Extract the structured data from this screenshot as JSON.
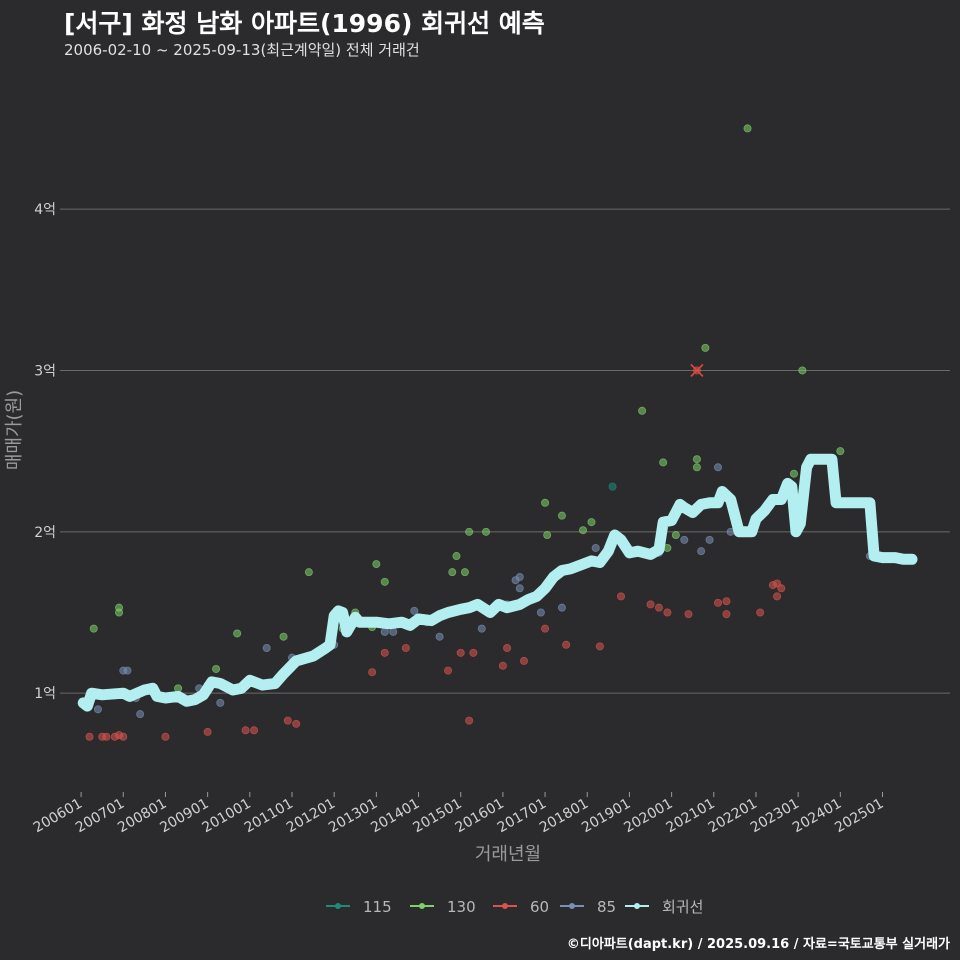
{
  "header": {
    "title": "[서구] 화정 남화 아파트(1996) 회귀선 예측",
    "subtitle": "2006-02-10 ~ 2025-09-13(최근계약일) 전체 거래건"
  },
  "footer": {
    "credit": "©디아파트(dapt.kr) / 2025.09.16 / 자료=국토교통부 실거래가"
  },
  "colors": {
    "background": "#2b2b2d",
    "grid": "#6a6a6a",
    "s115": "#1f8a7a",
    "s130": "#7fcf6a",
    "s60": "#d9534f",
    "s85": "#7a8fb5",
    "regression": "#b3eef0"
  },
  "chart_data": {
    "type": "scatter",
    "xlabel": "거래년월",
    "ylabel": "매매가(원)",
    "ylim": [
      0.4,
      4.8
    ],
    "y_unit": "억",
    "yticks": [
      {
        "value": 1,
        "label": "1억"
      },
      {
        "value": 2,
        "label": "2억"
      },
      {
        "value": 3,
        "label": "3억"
      },
      {
        "value": 4,
        "label": "4억"
      }
    ],
    "xlim": [
      2005.5,
      2026.6
    ],
    "xticks": [
      {
        "value": 2006.0,
        "label": "200601"
      },
      {
        "value": 2007.0,
        "label": "200701"
      },
      {
        "value": 2008.0,
        "label": "200801"
      },
      {
        "value": 2009.0,
        "label": "200901"
      },
      {
        "value": 2010.0,
        "label": "201001"
      },
      {
        "value": 2011.0,
        "label": "201101"
      },
      {
        "value": 2012.0,
        "label": "201201"
      },
      {
        "value": 2013.0,
        "label": "201301"
      },
      {
        "value": 2014.0,
        "label": "201401"
      },
      {
        "value": 2015.0,
        "label": "201501"
      },
      {
        "value": 2016.0,
        "label": "201601"
      },
      {
        "value": 2017.0,
        "label": "201701"
      },
      {
        "value": 2018.0,
        "label": "201801"
      },
      {
        "value": 2019.0,
        "label": "201901"
      },
      {
        "value": 2020.0,
        "label": "202001"
      },
      {
        "value": 2021.0,
        "label": "202101"
      },
      {
        "value": 2022.0,
        "label": "202201"
      },
      {
        "value": 2023.0,
        "label": "202301"
      },
      {
        "value": 2024.0,
        "label": "202401"
      },
      {
        "value": 2025.0,
        "label": "202501"
      }
    ],
    "legend": {
      "placement": "bottom",
      "entries": [
        "115",
        "130",
        "60",
        "85",
        "회귀선"
      ]
    },
    "series": [
      {
        "name": "115",
        "points": [
          [
            2018.6,
            2.28
          ]
        ]
      },
      {
        "name": "130",
        "points": [
          [
            2006.3,
            1.4
          ],
          [
            2006.9,
            1.5
          ],
          [
            2006.9,
            1.53
          ],
          [
            2008.3,
            1.03
          ],
          [
            2009.2,
            1.15
          ],
          [
            2009.7,
            1.37
          ],
          [
            2010.8,
            1.35
          ],
          [
            2011.4,
            1.75
          ],
          [
            2012.2,
            1.4
          ],
          [
            2012.5,
            1.5
          ],
          [
            2012.9,
            1.41
          ],
          [
            2013.0,
            1.8
          ],
          [
            2013.2,
            1.69
          ],
          [
            2014.8,
            1.75
          ],
          [
            2014.9,
            1.85
          ],
          [
            2015.1,
            1.75
          ],
          [
            2015.2,
            2.0
          ],
          [
            2015.6,
            2.0
          ],
          [
            2017.0,
            2.18
          ],
          [
            2017.05,
            1.98
          ],
          [
            2017.4,
            2.1
          ],
          [
            2017.9,
            2.01
          ],
          [
            2018.1,
            2.06
          ],
          [
            2019.3,
            2.75
          ],
          [
            2019.8,
            2.43
          ],
          [
            2019.9,
            1.9
          ],
          [
            2020.1,
            1.98
          ],
          [
            2020.6,
            2.45
          ],
          [
            2020.6,
            2.4
          ],
          [
            2020.8,
            3.14
          ],
          [
            2021.8,
            4.5
          ],
          [
            2022.9,
            2.36
          ],
          [
            2023.1,
            3.0
          ],
          [
            2024.0,
            2.5
          ]
        ]
      },
      {
        "name": "60",
        "points": [
          [
            2006.2,
            0.73
          ],
          [
            2006.5,
            0.73
          ],
          [
            2006.6,
            0.73
          ],
          [
            2006.8,
            0.73
          ],
          [
            2006.9,
            0.74
          ],
          [
            2007.0,
            0.73
          ],
          [
            2008.0,
            0.73
          ],
          [
            2009.0,
            0.76
          ],
          [
            2009.9,
            0.77
          ],
          [
            2010.1,
            0.77
          ],
          [
            2010.9,
            0.83
          ],
          [
            2011.1,
            0.81
          ],
          [
            2012.9,
            1.13
          ],
          [
            2013.2,
            1.25
          ],
          [
            2013.7,
            1.28
          ],
          [
            2014.7,
            1.14
          ],
          [
            2015.0,
            1.25
          ],
          [
            2015.2,
            0.83
          ],
          [
            2015.3,
            1.25
          ],
          [
            2016.0,
            1.17
          ],
          [
            2016.1,
            1.28
          ],
          [
            2016.5,
            1.2
          ],
          [
            2017.0,
            1.4
          ],
          [
            2017.5,
            1.3
          ],
          [
            2018.3,
            1.29
          ],
          [
            2018.8,
            1.6
          ],
          [
            2019.5,
            1.55
          ],
          [
            2019.7,
            1.53
          ],
          [
            2019.9,
            1.5
          ],
          [
            2020.4,
            1.49
          ],
          [
            2020.6,
            3.0
          ],
          [
            2021.1,
            1.56
          ],
          [
            2021.3,
            1.57
          ],
          [
            2021.3,
            1.49
          ],
          [
            2022.1,
            1.5
          ],
          [
            2022.4,
            1.67
          ],
          [
            2022.5,
            1.68
          ],
          [
            2022.5,
            1.6
          ],
          [
            2022.6,
            1.65
          ]
        ]
      },
      {
        "name": "85",
        "points": [
          [
            2006.4,
            0.9
          ],
          [
            2006.9,
            1.0
          ],
          [
            2007.0,
            1.14
          ],
          [
            2007.1,
            1.14
          ],
          [
            2007.3,
            0.97
          ],
          [
            2007.4,
            0.87
          ],
          [
            2008.0,
            0.97
          ],
          [
            2008.8,
            1.03
          ],
          [
            2009.0,
            1.05
          ],
          [
            2009.3,
            0.94
          ],
          [
            2010.4,
            1.28
          ],
          [
            2011.0,
            1.22
          ],
          [
            2012.0,
            1.3
          ],
          [
            2013.2,
            1.38
          ],
          [
            2013.4,
            1.38
          ],
          [
            2013.9,
            1.51
          ],
          [
            2014.2,
            1.44
          ],
          [
            2014.5,
            1.35
          ],
          [
            2015.5,
            1.4
          ],
          [
            2016.1,
            1.55
          ],
          [
            2016.3,
            1.7
          ],
          [
            2016.4,
            1.72
          ],
          [
            2016.4,
            1.65
          ],
          [
            2016.9,
            1.5
          ],
          [
            2017.4,
            1.53
          ],
          [
            2018.2,
            1.9
          ],
          [
            2019.7,
            1.87
          ],
          [
            2020.3,
            1.95
          ],
          [
            2020.7,
            1.88
          ],
          [
            2020.9,
            1.95
          ],
          [
            2021.1,
            2.4
          ],
          [
            2021.4,
            2.0
          ],
          [
            2024.7,
            1.85
          ]
        ]
      }
    ],
    "regression": {
      "name": "회귀선",
      "points": [
        [
          2006.05,
          0.94
        ],
        [
          2006.15,
          0.92
        ],
        [
          2006.25,
          1.0
        ],
        [
          2006.5,
          0.99
        ],
        [
          2007.0,
          1.0
        ],
        [
          2007.15,
          0.98
        ],
        [
          2007.5,
          1.02
        ],
        [
          2007.7,
          1.03
        ],
        [
          2007.8,
          0.98
        ],
        [
          2008.0,
          0.97
        ],
        [
          2008.3,
          0.98
        ],
        [
          2008.5,
          0.95
        ],
        [
          2008.7,
          0.96
        ],
        [
          2008.9,
          0.99
        ],
        [
          2009.1,
          1.07
        ],
        [
          2009.3,
          1.06
        ],
        [
          2009.6,
          1.02
        ],
        [
          2009.8,
          1.03
        ],
        [
          2010.0,
          1.08
        ],
        [
          2010.3,
          1.05
        ],
        [
          2010.6,
          1.06
        ],
        [
          2010.8,
          1.12
        ],
        [
          2011.1,
          1.2
        ],
        [
          2011.5,
          1.23
        ],
        [
          2011.8,
          1.28
        ],
        [
          2011.9,
          1.3
        ],
        [
          2012.0,
          1.48
        ],
        [
          2012.1,
          1.51
        ],
        [
          2012.2,
          1.5
        ],
        [
          2012.3,
          1.38
        ],
        [
          2012.5,
          1.47
        ],
        [
          2012.6,
          1.44
        ],
        [
          2013.0,
          1.44
        ],
        [
          2013.3,
          1.43
        ],
        [
          2013.6,
          1.44
        ],
        [
          2013.8,
          1.42
        ],
        [
          2014.0,
          1.46
        ],
        [
          2014.3,
          1.45
        ],
        [
          2014.5,
          1.48
        ],
        [
          2014.7,
          1.5
        ],
        [
          2015.0,
          1.52
        ],
        [
          2015.2,
          1.53
        ],
        [
          2015.4,
          1.55
        ],
        [
          2015.7,
          1.5
        ],
        [
          2015.9,
          1.55
        ],
        [
          2016.1,
          1.53
        ],
        [
          2016.4,
          1.55
        ],
        [
          2016.6,
          1.58
        ],
        [
          2016.8,
          1.6
        ],
        [
          2017.0,
          1.65
        ],
        [
          2017.2,
          1.72
        ],
        [
          2017.4,
          1.76
        ],
        [
          2017.6,
          1.77
        ],
        [
          2017.9,
          1.8
        ],
        [
          2018.1,
          1.82
        ],
        [
          2018.3,
          1.81
        ],
        [
          2018.5,
          1.88
        ],
        [
          2018.65,
          1.98
        ],
        [
          2018.8,
          1.95
        ],
        [
          2019.0,
          1.87
        ],
        [
          2019.2,
          1.88
        ],
        [
          2019.5,
          1.86
        ],
        [
          2019.7,
          1.89
        ],
        [
          2019.8,
          2.06
        ],
        [
          2020.0,
          2.07
        ],
        [
          2020.1,
          2.12
        ],
        [
          2020.2,
          2.17
        ],
        [
          2020.3,
          2.15
        ],
        [
          2020.5,
          2.12
        ],
        [
          2020.7,
          2.17
        ],
        [
          2020.9,
          2.18
        ],
        [
          2021.1,
          2.18
        ],
        [
          2021.2,
          2.25
        ],
        [
          2021.4,
          2.2
        ],
        [
          2021.6,
          2.0
        ],
        [
          2021.9,
          2.0
        ],
        [
          2022.0,
          2.08
        ],
        [
          2022.2,
          2.13
        ],
        [
          2022.4,
          2.2
        ],
        [
          2022.6,
          2.2
        ],
        [
          2022.75,
          2.3
        ],
        [
          2022.85,
          2.28
        ],
        [
          2022.95,
          2.0
        ],
        [
          2023.05,
          2.05
        ],
        [
          2023.2,
          2.4
        ],
        [
          2023.3,
          2.45
        ],
        [
          2023.6,
          2.45
        ],
        [
          2023.8,
          2.45
        ],
        [
          2023.9,
          2.18
        ],
        [
          2024.2,
          2.18
        ],
        [
          2024.5,
          2.18
        ],
        [
          2024.7,
          2.18
        ],
        [
          2024.8,
          1.85
        ],
        [
          2025.0,
          1.84
        ],
        [
          2025.3,
          1.84
        ],
        [
          2025.5,
          1.83
        ],
        [
          2025.7,
          1.83
        ]
      ]
    },
    "highlight": {
      "x": 2020.6,
      "y": 3.0,
      "marker": "x"
    }
  }
}
